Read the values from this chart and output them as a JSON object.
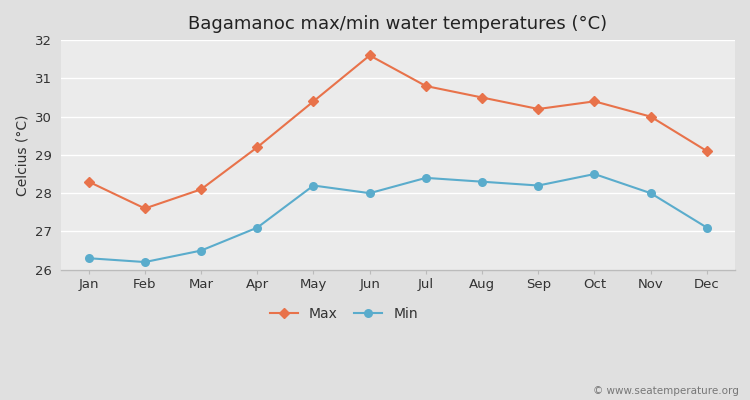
{
  "title": "Bagamanoc max/min water temperatures (°C)",
  "ylabel": "Celcius (°C)",
  "months": [
    "Jan",
    "Feb",
    "Mar",
    "Apr",
    "May",
    "Jun",
    "Jul",
    "Aug",
    "Sep",
    "Oct",
    "Nov",
    "Dec"
  ],
  "max_values": [
    28.3,
    27.6,
    28.1,
    29.2,
    30.4,
    31.6,
    30.8,
    30.5,
    30.2,
    30.4,
    30.0,
    29.1
  ],
  "min_values": [
    26.3,
    26.2,
    26.5,
    27.1,
    28.2,
    28.0,
    28.4,
    28.3,
    28.2,
    28.5,
    28.0,
    27.1
  ],
  "max_color": "#e8724a",
  "min_color": "#5aaccc",
  "fig_bg_color": "#e0e0e0",
  "plot_bg_color": "#ebebeb",
  "grid_color": "#ffffff",
  "ylim": [
    26,
    32
  ],
  "yticks": [
    26,
    27,
    28,
    29,
    30,
    31,
    32
  ],
  "legend_labels": [
    "Max",
    "Min"
  ],
  "watermark": "© www.seatemperature.org",
  "title_fontsize": 13,
  "label_fontsize": 10,
  "tick_fontsize": 9.5,
  "legend_fontsize": 10
}
